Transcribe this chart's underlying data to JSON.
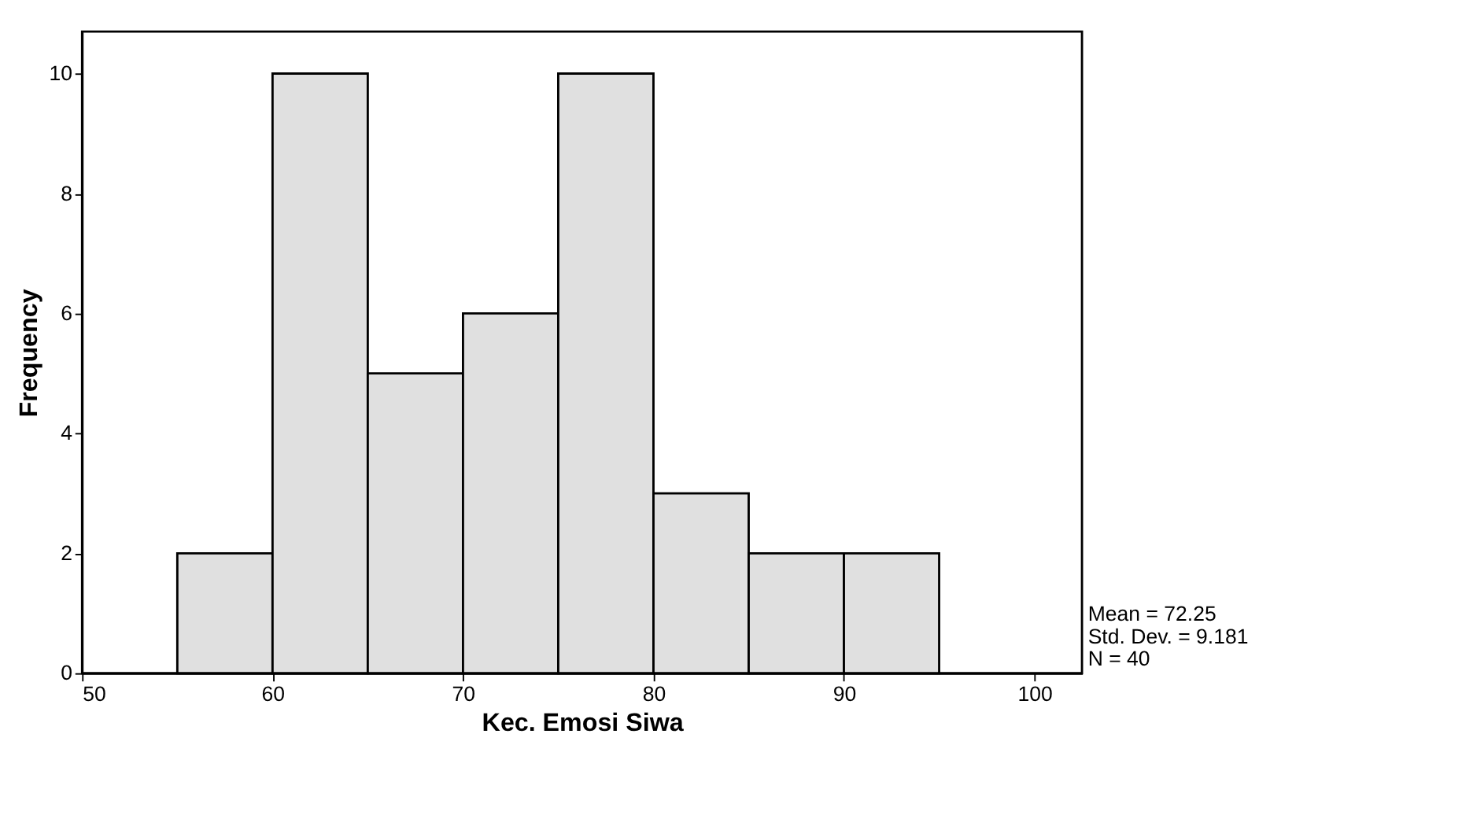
{
  "chart_data": {
    "type": "histogram",
    "bins": [
      55,
      60,
      65,
      70,
      75,
      80,
      85,
      90,
      95
    ],
    "values": [
      2,
      10,
      5,
      6,
      10,
      3,
      2,
      2
    ],
    "color": "#e0e0e0",
    "xlabel": "Kec. Emosi Siwa",
    "ylabel": "Frequency",
    "xlim": [
      50,
      102.5
    ],
    "xticks": [
      50,
      60,
      70,
      80,
      90,
      100
    ],
    "ylim": [
      0,
      10.7
    ],
    "yticks": [
      0,
      2,
      4,
      6,
      8,
      10
    ],
    "grid": false,
    "annotations": [
      "Mean = 72.25",
      "Std. Dev. = 9.181",
      "N = 40"
    ]
  }
}
